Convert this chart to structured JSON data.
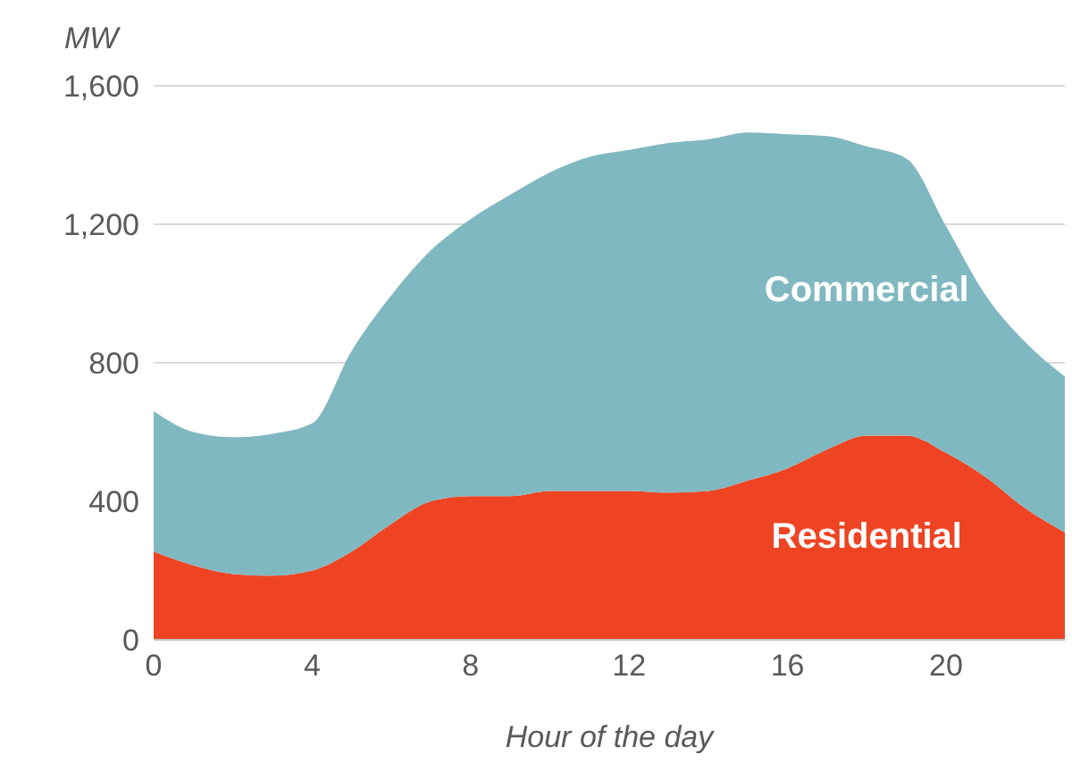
{
  "chart_data": {
    "type": "area",
    "stacked": true,
    "xlabel": "Hour of the day",
    "ylabel": "MW",
    "x": [
      0,
      1,
      2,
      3,
      4,
      5,
      6,
      7,
      8,
      9,
      10,
      11,
      12,
      13,
      14,
      15,
      16,
      17,
      18,
      19,
      20,
      21,
      22,
      23
    ],
    "series": [
      {
        "name": "Residential",
        "color": "#ee4423",
        "values": [
          255,
          215,
          190,
          185,
          200,
          255,
          335,
          400,
          415,
          415,
          430,
          430,
          430,
          425,
          430,
          460,
          495,
          550,
          590,
          590,
          540,
          470,
          380,
          310
        ]
      },
      {
        "name": "Commercial",
        "color": "#7fb8c0",
        "values": [
          405,
          385,
          395,
          410,
          425,
          580,
          660,
          725,
          800,
          870,
          920,
          965,
          985,
          1010,
          1015,
          1005,
          965,
          905,
          835,
          800,
          655,
          525,
          480,
          450
        ]
      }
    ],
    "xlim": [
      0,
      23
    ],
    "xticks": [
      0,
      4,
      8,
      12,
      16,
      20
    ],
    "ylim": [
      0,
      1600
    ],
    "yticks": [
      0,
      400,
      800,
      {
        "value": 1200,
        "label": "1,200"
      },
      {
        "value": 1600,
        "label": "1,600"
      }
    ],
    "grid": "y",
    "legend": false
  }
}
